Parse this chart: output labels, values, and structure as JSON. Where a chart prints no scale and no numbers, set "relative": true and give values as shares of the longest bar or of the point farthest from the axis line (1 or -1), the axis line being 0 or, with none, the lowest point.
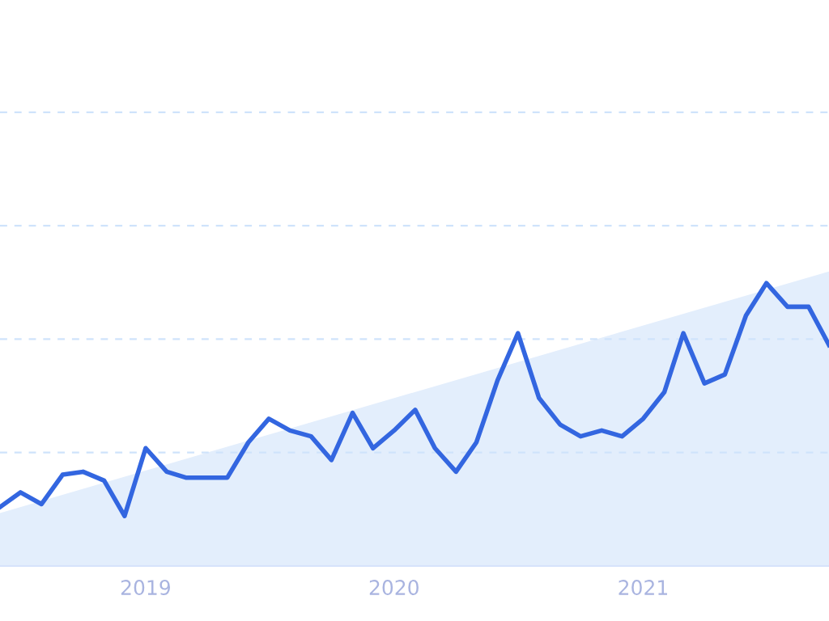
{
  "chart_data": {
    "type": "line",
    "relative": true,
    "x": [
      "2018-06",
      "2018-07",
      "2018-08",
      "2018-09",
      "2018-10",
      "2018-11",
      "2018-12",
      "2019-01",
      "2019-02",
      "2019-03",
      "2019-04",
      "2019-05",
      "2019-06",
      "2019-07",
      "2019-08",
      "2019-09",
      "2019-10",
      "2019-11",
      "2019-12",
      "2020-01",
      "2020-02",
      "2020-03",
      "2020-04",
      "2020-05",
      "2020-06",
      "2020-07",
      "2020-08",
      "2020-09",
      "2020-10",
      "2020-11",
      "2020-12",
      "2021-01",
      "2021-02",
      "2021-03",
      "2021-04",
      "2021-05",
      "2021-06",
      "2021-07",
      "2021-08",
      "2021-09",
      "2021-10"
    ],
    "xlim": [
      "2018-06",
      "2021-10"
    ],
    "xticks": [
      {
        "value": "2019-01",
        "label": "2019"
      },
      {
        "value": "2020-01",
        "label": "2020"
      },
      {
        "value": "2021-01",
        "label": "2021"
      }
    ],
    "series": [
      {
        "type": "area",
        "color": "#e3eefc",
        "x": [
          "2018-06",
          "2021-10"
        ],
        "values": [
          0.18,
          1
        ]
      },
      {
        "color": "#3366e0",
        "values": [
          0.2,
          0.25,
          0.21,
          0.31,
          0.32,
          0.29,
          0.17,
          0.4,
          0.32,
          0.3,
          0.3,
          0.3,
          0.42,
          0.5,
          0.46,
          0.44,
          0.36,
          0.52,
          0.4,
          0.46,
          0.53,
          0.4,
          0.32,
          0.42,
          0.63,
          0.79,
          0.57,
          0.48,
          0.44,
          0.46,
          0.44,
          0.5,
          0.59,
          0.79,
          0.62,
          0.65,
          0.85,
          0.96,
          0.88,
          0.88,
          0.75
        ]
      }
    ],
    "ref_lines": [
      {
        "axis": "y",
        "value": 0.385,
        "color": "#cfe3fb",
        "line_style": "dashed"
      },
      {
        "axis": "y",
        "value": 0.77,
        "color": "#cfe3fb",
        "line_style": "dashed"
      },
      {
        "axis": "y",
        "value": 1.155,
        "color": "#cfe3fb",
        "line_style": "dashed"
      },
      {
        "axis": "y",
        "value": 1.54,
        "color": "#cfe3fb",
        "line_style": "dashed"
      }
    ],
    "marker": "none",
    "line_style": "solid",
    "grid": false,
    "legend": false
  }
}
